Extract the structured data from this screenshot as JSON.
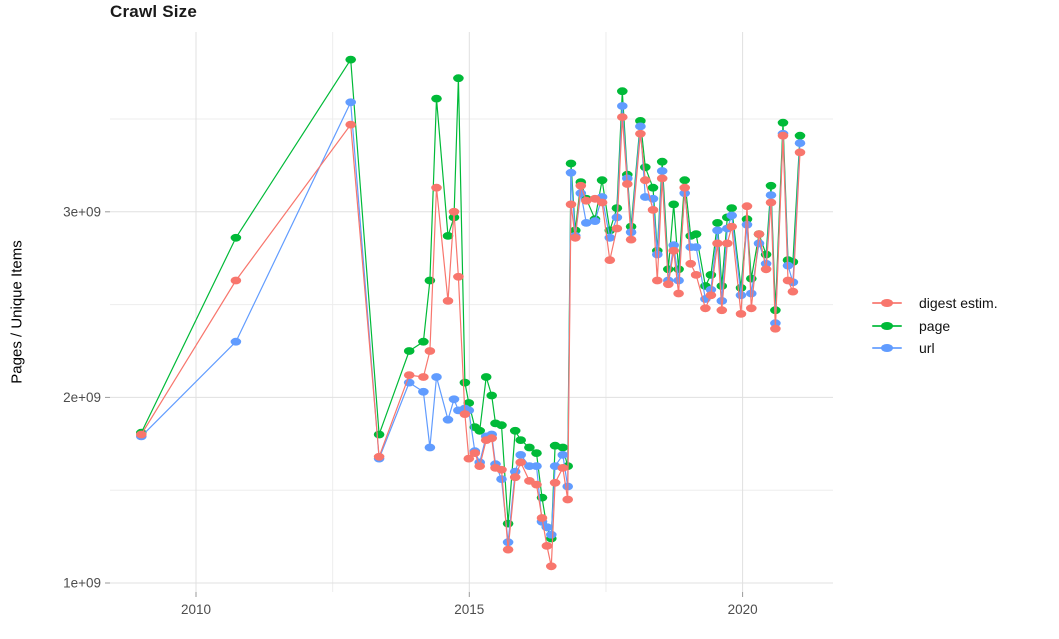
{
  "chart": {
    "title": "Crawl Size"
  },
  "chart_data": {
    "type": "line",
    "title": "Crawl Size",
    "xlabel": "",
    "ylabel": "Pages / Unique Items",
    "values_unit": "billions (value 1.8 means 1.8e+09)",
    "x_unit": "decimal year",
    "xlim": [
      2008.4,
      2021.65
    ],
    "ylim": [
      950000000,
      3970000000
    ],
    "grid": "major and minor, light gray on white",
    "legend_position": "right",
    "xticks": [
      {
        "value": 2010,
        "label": "2010"
      },
      {
        "value": 2015,
        "label": "2015"
      },
      {
        "value": 2020,
        "label": "2020"
      }
    ],
    "xticks_minor": [
      2012.5,
      2017.5
    ],
    "yticks": [
      {
        "value": 1.0,
        "label": "1e+09"
      },
      {
        "value": 2.0,
        "label": "2e+09"
      },
      {
        "value": 3.0,
        "label": "3e+09"
      }
    ],
    "yticks_minor": [
      1.5,
      2.5,
      3.5
    ],
    "x": [
      2009.0,
      2010.73,
      2012.83,
      2013.35,
      2013.9,
      2014.16,
      2014.28,
      2014.4,
      2014.61,
      2014.72,
      2014.8,
      2014.92,
      2014.99,
      2015.1,
      2015.19,
      2015.31,
      2015.41,
      2015.48,
      2015.59,
      2015.71,
      2015.84,
      2015.94,
      2016.1,
      2016.23,
      2016.33,
      2016.42,
      2016.5,
      2016.57,
      2016.71,
      2016.8,
      2016.86,
      2016.94,
      2017.04,
      2017.14,
      2017.3,
      2017.43,
      2017.57,
      2017.7,
      2017.8,
      2017.89,
      2017.96,
      2018.13,
      2018.22,
      2018.36,
      2018.44,
      2018.53,
      2018.64,
      2018.74,
      2018.83,
      2018.94,
      2019.05,
      2019.15,
      2019.32,
      2019.42,
      2019.54,
      2019.62,
      2019.72,
      2019.8,
      2019.97,
      2020.08,
      2020.16,
      2020.3,
      2020.43,
      2020.52,
      2020.6,
      2020.74,
      2020.83,
      2020.92,
      2021.05
    ],
    "series": [
      {
        "name": "digest estim.",
        "color": "#F8766D",
        "values": [
          1.8,
          2.63,
          3.47,
          1.68,
          2.12,
          2.11,
          2.25,
          3.13,
          2.52,
          3.0,
          2.65,
          1.91,
          1.67,
          1.7,
          1.63,
          1.77,
          1.78,
          1.62,
          1.61,
          1.18,
          1.57,
          1.65,
          1.55,
          1.53,
          1.35,
          1.2,
          1.09,
          1.54,
          1.62,
          1.45,
          3.04,
          2.86,
          3.14,
          3.06,
          3.07,
          3.05,
          2.74,
          2.91,
          3.51,
          3.15,
          2.85,
          3.42,
          3.17,
          3.01,
          2.63,
          3.18,
          2.61,
          2.79,
          2.56,
          3.13,
          2.72,
          2.66,
          2.48,
          2.55,
          2.83,
          2.47,
          2.83,
          2.92,
          2.45,
          3.03,
          2.48,
          2.88,
          2.69,
          3.05,
          2.37,
          3.41,
          2.63,
          2.57,
          3.32
        ]
      },
      {
        "name": "page",
        "color": "#00BA38",
        "values": [
          1.81,
          2.86,
          3.82,
          1.8,
          2.25,
          2.3,
          2.63,
          3.61,
          2.87,
          2.97,
          3.72,
          2.08,
          1.97,
          1.84,
          1.82,
          2.11,
          2.01,
          1.86,
          1.85,
          1.32,
          1.82,
          1.77,
          1.73,
          1.7,
          1.46,
          1.3,
          1.24,
          1.74,
          1.73,
          1.63,
          3.26,
          2.9,
          3.16,
          3.07,
          2.96,
          3.17,
          2.9,
          3.02,
          3.65,
          3.2,
          2.92,
          3.49,
          3.24,
          3.13,
          2.79,
          3.27,
          2.69,
          3.04,
          2.69,
          3.17,
          2.87,
          2.88,
          2.6,
          2.66,
          2.94,
          2.6,
          2.97,
          3.02,
          2.59,
          2.96,
          2.64,
          2.88,
          2.77,
          3.14,
          2.47,
          3.48,
          2.74,
          2.73,
          3.41
        ]
      },
      {
        "name": "url",
        "color": "#619CFF",
        "values": [
          1.79,
          2.3,
          3.59,
          1.67,
          2.08,
          2.03,
          1.73,
          2.11,
          1.88,
          1.99,
          1.93,
          1.94,
          1.93,
          1.71,
          1.65,
          1.79,
          1.8,
          1.64,
          1.56,
          1.22,
          1.6,
          1.69,
          1.63,
          1.63,
          1.33,
          1.3,
          1.26,
          1.63,
          1.69,
          1.52,
          3.21,
          2.87,
          3.1,
          2.94,
          2.95,
          3.08,
          2.86,
          2.97,
          3.57,
          3.18,
          2.89,
          3.46,
          3.08,
          3.07,
          2.77,
          3.22,
          2.63,
          2.82,
          2.63,
          3.1,
          2.81,
          2.81,
          2.53,
          2.58,
          2.9,
          2.52,
          2.91,
          2.98,
          2.55,
          2.93,
          2.56,
          2.83,
          2.72,
          3.09,
          2.4,
          3.42,
          2.71,
          2.62,
          3.37
        ]
      }
    ],
    "style": {
      "grid_major_color": "#e0e0e0",
      "grid_minor_color": "#ededed",
      "tick_color": "#9a9a9a",
      "axis_text_color": "#4d4d4d",
      "background": "#ffffff"
    }
  }
}
